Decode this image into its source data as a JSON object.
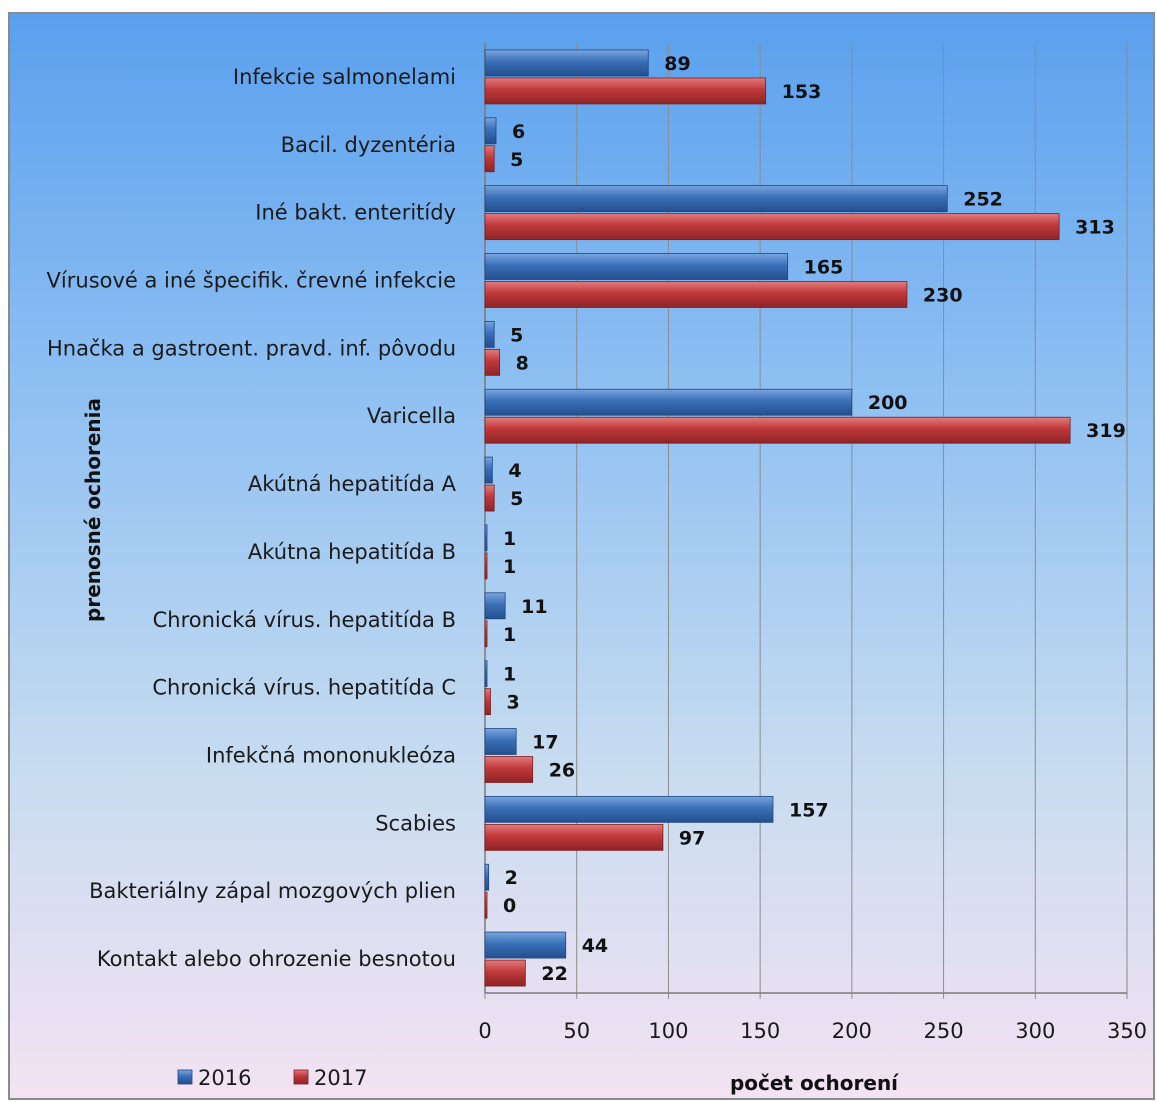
{
  "chart_data": {
    "type": "bar",
    "orientation": "horizontal",
    "categories": [
      "Infekcie salmonelami",
      "Bacil. dyzentéria",
      "Iné bakt. enteritídy",
      "Vírusové a iné špecifik. črevné infekcie",
      "Hnačka a gastroent. pravd. inf. pôvodu",
      "Varicella",
      "Akútná hepatitída A",
      "Akútna hepatitída B",
      "Chronická vírus. hepatitída B",
      "Chronická vírus. hepatitída C",
      "Infekčná mononukleóza",
      "Scabies",
      "Bakteriálny zápal mozgových plien",
      "Kontakt alebo ohrozenie besnotou"
    ],
    "series": [
      {
        "name": "2016",
        "color": "#3a6fb8",
        "values": [
          89,
          6,
          252,
          165,
          5,
          200,
          4,
          1,
          11,
          1,
          17,
          157,
          2,
          44
        ]
      },
      {
        "name": "2017",
        "color": "#c0383a",
        "values": [
          153,
          5,
          313,
          230,
          8,
          319,
          5,
          1,
          1,
          3,
          26,
          97,
          0,
          22
        ]
      }
    ],
    "xlabel": "počet ochorení",
    "ylabel": "prenosné ochorenia",
    "xlim": [
      0,
      350
    ],
    "xticks": [
      "0",
      "50",
      "100",
      "150",
      "200",
      "250",
      "300",
      "350"
    ],
    "grid": true,
    "legend": "bottom-left",
    "data_labels": true
  }
}
